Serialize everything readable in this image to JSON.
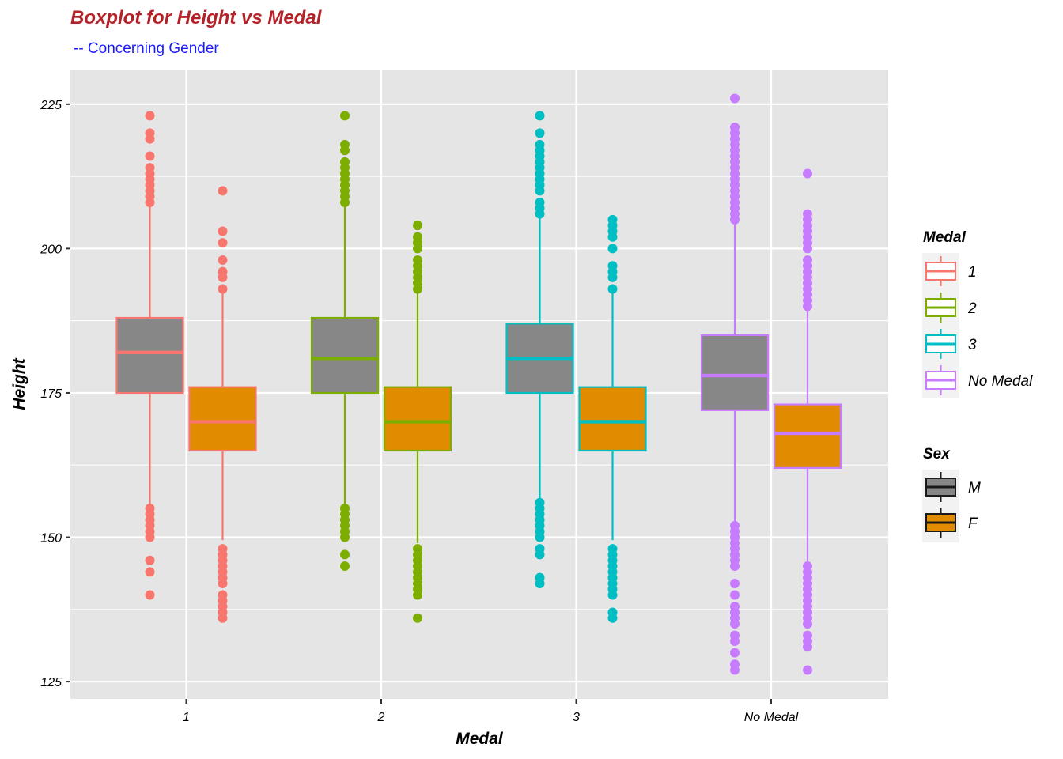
{
  "chart_data": {
    "type": "boxplot",
    "title": "Boxplot for Height vs Medal",
    "subtitle": "-- Concerning Gender",
    "xlabel": "Medal",
    "ylabel": "Height",
    "ylim": [
      122,
      231
    ],
    "yticks": [
      125,
      150,
      175,
      200,
      225
    ],
    "categories": [
      "1",
      "2",
      "3",
      "No Medal"
    ],
    "sex_levels": [
      "M",
      "F"
    ],
    "colors": {
      "medal": [
        "#F8766D",
        "#7CAE00",
        "#00BFC4",
        "#C77CFF"
      ],
      "sex_fill": {
        "M": "#878787",
        "F": "#E08B00"
      },
      "panel_bg": "#E5E5E5",
      "grid": "#FFFFFF",
      "title": "#B22228",
      "subtitle": "#1A1AFF"
    },
    "legend": {
      "position": "right",
      "medal_title": "Medal",
      "medal_entries": [
        "1",
        "2",
        "3",
        "No Medal"
      ],
      "sex_title": "Sex",
      "sex_entries": [
        "M",
        "F"
      ]
    },
    "boxes": [
      {
        "medal": "1",
        "sex": "M",
        "lower_whisker": 155.5,
        "q1": 175,
        "median": 182,
        "q3": 188,
        "upper_whisker": 207.5,
        "outliers": [
          140,
          144,
          146,
          150,
          151,
          152,
          153,
          154,
          155,
          208,
          209,
          210,
          211,
          212,
          213,
          214,
          216,
          219,
          220,
          223
        ]
      },
      {
        "medal": "1",
        "sex": "F",
        "lower_whisker": 149.5,
        "q1": 165,
        "median": 170,
        "q3": 176,
        "upper_whisker": 192.5,
        "outliers": [
          136,
          137,
          138,
          139,
          140,
          142,
          143,
          144,
          145,
          146,
          147,
          148,
          193,
          195,
          196,
          198,
          201,
          203,
          210
        ]
      },
      {
        "medal": "2",
        "sex": "M",
        "lower_whisker": 155.5,
        "q1": 175,
        "median": 181,
        "q3": 188,
        "upper_whisker": 207.5,
        "outliers": [
          145,
          147,
          150,
          151,
          152,
          153,
          154,
          155,
          208,
          209,
          210,
          211,
          212,
          213,
          214,
          215,
          217,
          218,
          223
        ]
      },
      {
        "medal": "2",
        "sex": "F",
        "lower_whisker": 149,
        "q1": 165,
        "median": 170,
        "q3": 176,
        "upper_whisker": 192.5,
        "outliers": [
          136,
          140,
          141,
          142,
          143,
          144,
          145,
          146,
          147,
          148,
          193,
          194,
          195,
          196,
          197,
          198,
          200,
          201,
          202,
          204
        ]
      },
      {
        "medal": "3",
        "sex": "M",
        "lower_whisker": 156.5,
        "q1": 175,
        "median": 181,
        "q3": 187,
        "upper_whisker": 205.5,
        "outliers": [
          142,
          143,
          147,
          148,
          150,
          151,
          152,
          153,
          154,
          155,
          156,
          206,
          207,
          208,
          210,
          211,
          212,
          213,
          214,
          215,
          216,
          217,
          218,
          220,
          223
        ]
      },
      {
        "medal": "3",
        "sex": "F",
        "lower_whisker": 149.5,
        "q1": 165,
        "median": 170,
        "q3": 176,
        "upper_whisker": 192.5,
        "outliers": [
          136,
          137,
          140,
          141,
          142,
          143,
          144,
          145,
          146,
          147,
          148,
          193,
          195,
          196,
          197,
          200,
          202,
          203,
          204,
          205
        ]
      },
      {
        "medal": "No Medal",
        "sex": "M",
        "lower_whisker": 152.5,
        "q1": 172,
        "median": 178,
        "q3": 185,
        "upper_whisker": 204.5,
        "outliers": [
          127,
          128,
          130,
          132,
          133,
          135,
          136,
          137,
          138,
          140,
          142,
          145,
          146,
          147,
          148,
          149,
          150,
          151,
          152,
          205,
          206,
          207,
          208,
          209,
          210,
          211,
          212,
          213,
          214,
          215,
          216,
          217,
          218,
          219,
          220,
          221,
          226
        ]
      },
      {
        "medal": "No Medal",
        "sex": "F",
        "lower_whisker": 145.5,
        "q1": 162,
        "median": 168,
        "q3": 173,
        "upper_whisker": 189.5,
        "outliers": [
          127,
          131,
          132,
          133,
          135,
          136,
          137,
          138,
          139,
          140,
          141,
          142,
          143,
          144,
          145,
          190,
          191,
          192,
          193,
          194,
          195,
          196,
          197,
          198,
          200,
          201,
          202,
          203,
          204,
          205,
          206,
          213
        ]
      }
    ]
  }
}
